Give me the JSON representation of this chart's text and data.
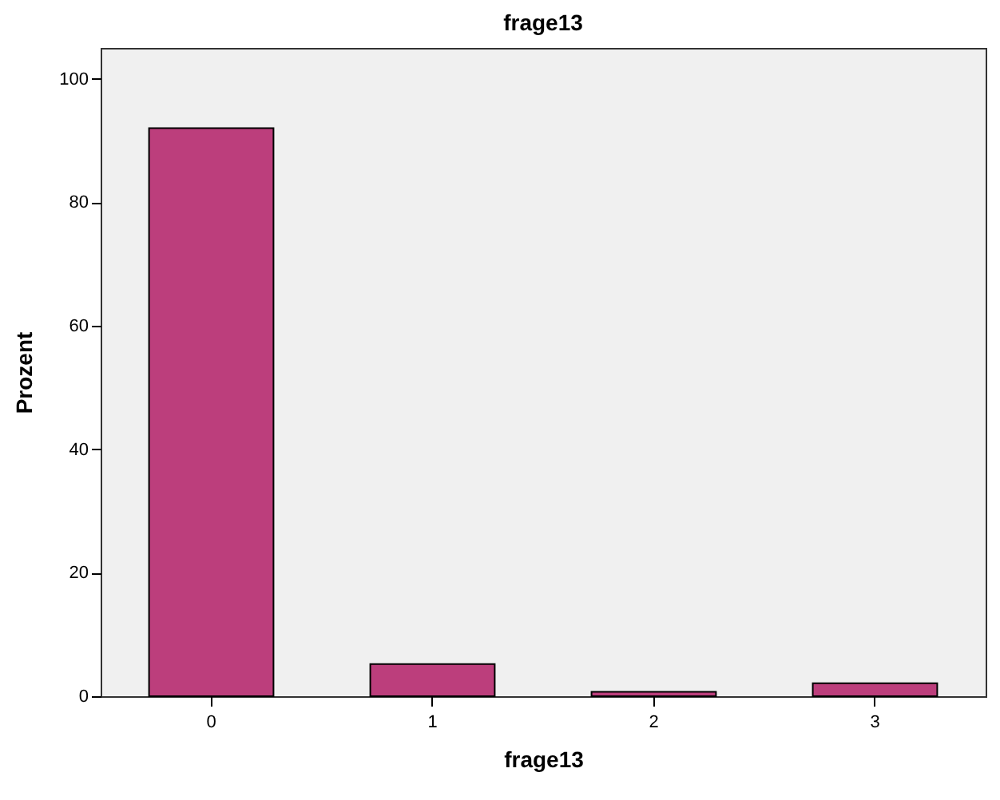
{
  "chart_data": {
    "type": "bar",
    "title": "frage13",
    "xlabel": "frage13",
    "ylabel": "Prozent",
    "categories": [
      "0",
      "1",
      "2",
      "3"
    ],
    "values": [
      92,
      5.2,
      0.7,
      2.1
    ],
    "color": "#bc3e7c",
    "ylim": [
      0,
      105
    ],
    "yticks": [
      0,
      20,
      40,
      60,
      80,
      100
    ],
    "grid": false
  }
}
